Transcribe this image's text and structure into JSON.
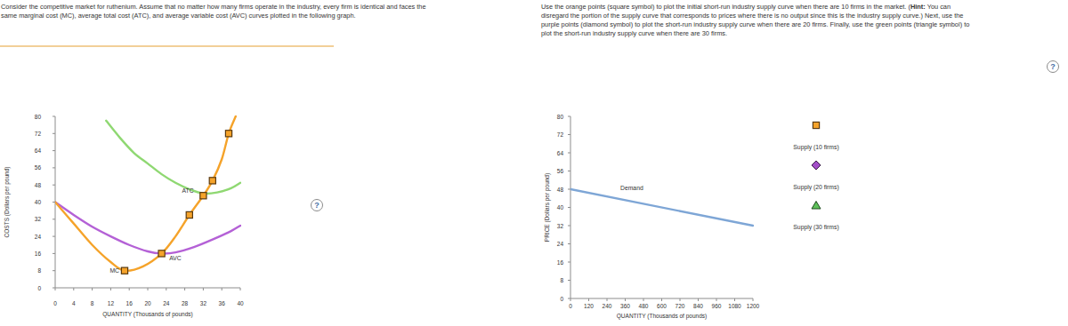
{
  "instructions_left": [
    "Consider the competitive market for ruthenium. Assume that no matter how many firms operate in the industry, every firm is identical and faces the",
    "same marginal cost (MC), average total cost (ATC), and average variable cost (AVC) curves plotted in the following graph."
  ],
  "instructions_right": [
    [
      {
        "text": "Use the orange points (square symbol) to plot the initial short-run industry supply curve when there are 10 firms in the market. ("
      },
      {
        "text": "Hint:",
        "bold": true
      },
      {
        "text": " You can"
      }
    ],
    [
      {
        "text": "disregard the portion of the supply curve that corresponds to prices where there is no output since this is the industry supply curve.) Next, use the"
      }
    ],
    [
      {
        "text": "purple points (diamond symbol) to plot the short-run industry supply curve when there are 20 firms. Finally, use the green points (triangle symbol) to"
      }
    ],
    [
      {
        "text": "plot the short-run industry supply curve when there are 30 firms."
      }
    ]
  ],
  "help_icon": "?",
  "chart_data": [
    {
      "type": "line",
      "xlabel": "QUANTITY (Thousands of pounds)",
      "ylabel": "COSTS (Dollars per pound)",
      "xlim": [
        0,
        40
      ],
      "ylim": [
        0,
        80
      ],
      "xticks": [
        0,
        4,
        8,
        12,
        16,
        20,
        24,
        28,
        32,
        36,
        40
      ],
      "yticks": [
        0,
        8,
        16,
        24,
        32,
        40,
        48,
        56,
        64,
        72,
        80
      ],
      "grid": false,
      "series": [
        {
          "name": "ATC",
          "color": "#8fd872",
          "line_style": "solid",
          "x": [
            11,
            14,
            17,
            20,
            23,
            26,
            29,
            32,
            35,
            38,
            40
          ],
          "values": [
            78,
            70,
            63,
            58,
            53,
            49,
            46,
            44,
            44.5,
            46.5,
            49
          ]
        },
        {
          "name": "AVC",
          "color": "#b461d6",
          "line_style": "solid",
          "x": [
            0,
            4,
            8,
            12,
            16,
            20,
            23,
            26,
            30,
            34,
            38,
            40
          ],
          "values": [
            40,
            34,
            28.5,
            24,
            20,
            17,
            16,
            16.5,
            19,
            22.5,
            26.5,
            29
          ]
        },
        {
          "name": "MC",
          "color": "#f5a32a",
          "line_style": "solid",
          "x": [
            0,
            4,
            8,
            12,
            15,
            19,
            23,
            26,
            29,
            32,
            34,
            36,
            37.5,
            39
          ],
          "values": [
            40,
            30,
            20,
            12,
            8,
            10,
            16,
            24,
            34,
            43,
            50,
            60,
            72,
            80
          ]
        },
        {
          "type": "scatter",
          "color": "#f5a32a",
          "marker": "square",
          "x": [
            15,
            23,
            29,
            32,
            34,
            37.5
          ],
          "values": [
            8,
            16,
            34,
            43,
            50,
            72
          ]
        }
      ]
    },
    {
      "type": "line",
      "xlabel": "QUANTITY (Thousands of pounds)",
      "ylabel": "PRICE (Dollars per pound)",
      "xlim": [
        0,
        1200
      ],
      "ylim": [
        0,
        80
      ],
      "xticks": [
        0,
        120,
        240,
        360,
        480,
        600,
        720,
        840,
        960,
        1080,
        1200
      ],
      "yticks": [
        0,
        8,
        16,
        24,
        32,
        40,
        48,
        56,
        64,
        72,
        80
      ],
      "grid": false,
      "legend": "right",
      "series": [
        {
          "name": "Demand",
          "color": "#7ea6d6",
          "line_style": "solid",
          "x": [
            0,
            1200
          ],
          "values": [
            48,
            32
          ]
        },
        {
          "name": "Supply (10 firms)",
          "color": "#f5a32a",
          "marker": "square",
          "x": [],
          "values": []
        },
        {
          "name": "Supply (20 firms)",
          "color": "#a24fc7",
          "marker": "diamond",
          "x": [],
          "values": []
        },
        {
          "name": "Supply (30 firms)",
          "color": "#5ec15a",
          "marker": "triangle",
          "x": [],
          "values": []
        }
      ]
    }
  ]
}
